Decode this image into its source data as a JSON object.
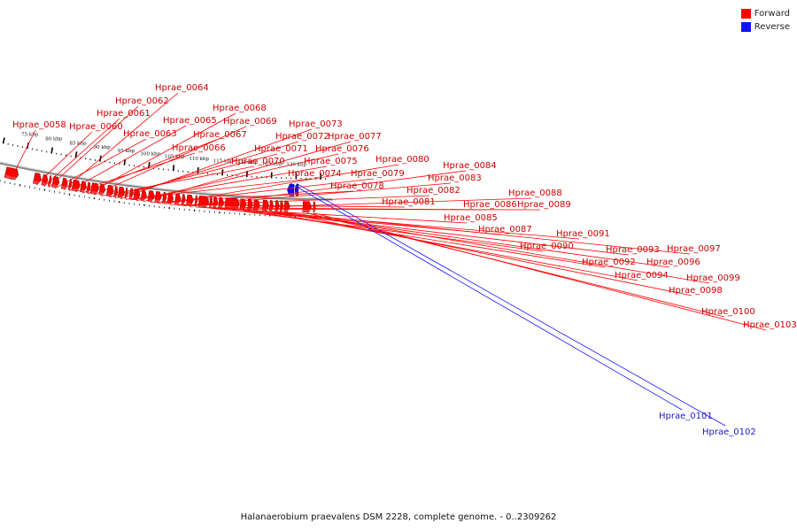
{
  "legend": {
    "forward": {
      "label": "Forward",
      "color": "#ff0000"
    },
    "reverse": {
      "label": "Reverse",
      "color": "#1010ff"
    }
  },
  "caption": "Halanaerobium praevalens DSM 2228, complete genome. - 0..2309262",
  "scale": {
    "unit": "kbp",
    "major_ticks": [
      {
        "kbp": 75,
        "label": "75 kbp"
      },
      {
        "kbp": 80,
        "label": "80 kbp"
      },
      {
        "kbp": 85,
        "label": "85 kbp"
      },
      {
        "kbp": 90,
        "label": "90 kbp"
      },
      {
        "kbp": 95,
        "label": "95 kbp"
      },
      {
        "kbp": 100,
        "label": "100 kbp"
      },
      {
        "kbp": 105,
        "label": "105 kbp"
      },
      {
        "kbp": 110,
        "label": "110 kbp"
      },
      {
        "kbp": 115,
        "label": "115 kbp"
      },
      {
        "kbp": 120,
        "label": "120 kbp"
      },
      {
        "kbp": 125,
        "label": "125 kbp"
      },
      {
        "kbp": 130,
        "label": "130 kbp"
      }
    ]
  },
  "genes": [
    {
      "name": "Hprae_0058",
      "strand": "forward",
      "start_kbp": 71.7,
      "end_kbp": 74.3
    },
    {
      "name": "Hprae_0060",
      "strand": "forward",
      "start_kbp": 77.5,
      "end_kbp": 78.9
    },
    {
      "name": "Hprae_0061",
      "strand": "forward",
      "start_kbp": 79.2,
      "end_kbp": 80.3
    },
    {
      "name": "Hprae_0062",
      "strand": "forward",
      "start_kbp": 80.5,
      "end_kbp": 81.0
    },
    {
      "name": "Hprae_0063",
      "strand": "forward",
      "start_kbp": 81.3,
      "end_kbp": 82.6
    },
    {
      "name": "Hprae_0064",
      "strand": "forward",
      "start_kbp": 83.2,
      "end_kbp": 84.3
    },
    {
      "name": "Hprae_0065",
      "strand": "forward",
      "start_kbp": 84.6,
      "end_kbp": 85.1
    },
    {
      "name": "Hprae_0066",
      "strand": "forward",
      "start_kbp": 85.3,
      "end_kbp": 86.8
    },
    {
      "name": "Hprae_0067",
      "strand": "forward",
      "start_kbp": 87.0,
      "end_kbp": 88.1
    },
    {
      "name": "Hprae_0068",
      "strand": "forward",
      "start_kbp": 88.3,
      "end_kbp": 88.9
    },
    {
      "name": "Hprae_0069",
      "strand": "forward",
      "start_kbp": 89.1,
      "end_kbp": 90.6
    },
    {
      "name": "Hprae_0070",
      "strand": "forward",
      "start_kbp": 90.8,
      "end_kbp": 91.9
    },
    {
      "name": "Hprae_0071",
      "strand": "forward",
      "start_kbp": 92.3,
      "end_kbp": 93.6
    },
    {
      "name": "Hprae_0072",
      "strand": "forward",
      "start_kbp": 93.8,
      "end_kbp": 94.4
    },
    {
      "name": "Hprae_0073",
      "strand": "forward",
      "start_kbp": 94.6,
      "end_kbp": 95.8
    },
    {
      "name": "Hprae_0074",
      "strand": "forward",
      "start_kbp": 96.0,
      "end_kbp": 96.4
    },
    {
      "name": "Hprae_0075",
      "strand": "forward",
      "start_kbp": 96.9,
      "end_kbp": 97.5
    },
    {
      "name": "Hprae_0076",
      "strand": "forward",
      "start_kbp": 97.7,
      "end_kbp": 98.9
    },
    {
      "name": "Hprae_0077",
      "strand": "forward",
      "start_kbp": 99.2,
      "end_kbp": 100.2
    },
    {
      "name": "Hprae_0078",
      "strand": "forward",
      "start_kbp": 100.6,
      "end_kbp": 101.8
    },
    {
      "name": "Hprae_0079",
      "strand": "forward",
      "start_kbp": 102.0,
      "end_kbp": 103.2
    },
    {
      "name": "Hprae_0080",
      "strand": "forward",
      "start_kbp": 103.5,
      "end_kbp": 104.2
    },
    {
      "name": "Hprae_0081",
      "strand": "forward",
      "start_kbp": 104.5,
      "end_kbp": 105.6
    },
    {
      "name": "Hprae_0082",
      "strand": "forward",
      "start_kbp": 106.0,
      "end_kbp": 107.1
    },
    {
      "name": "Hprae_0083",
      "strand": "forward",
      "start_kbp": 107.3,
      "end_kbp": 108.0
    },
    {
      "name": "Hprae_0084",
      "strand": "forward",
      "start_kbp": 108.3,
      "end_kbp": 109.6
    },
    {
      "name": "Hprae_0085",
      "strand": "forward",
      "start_kbp": 110.0,
      "end_kbp": 110.4
    },
    {
      "name": "Hprae_0086",
      "strand": "forward",
      "start_kbp": 110.7,
      "end_kbp": 112.7
    },
    {
      "name": "Hprae_0087",
      "strand": "forward",
      "start_kbp": 112.9,
      "end_kbp": 113.4
    },
    {
      "name": "Hprae_0088",
      "strand": "forward",
      "start_kbp": 113.6,
      "end_kbp": 114.5
    },
    {
      "name": "Hprae_0089",
      "strand": "forward",
      "start_kbp": 114.7,
      "end_kbp": 115.7
    },
    {
      "name": "Hprae_0090",
      "strand": "forward",
      "start_kbp": 116.0,
      "end_kbp": 118.8
    },
    {
      "name": "Hprae_0091",
      "strand": "forward",
      "start_kbp": 119.0,
      "end_kbp": 120.2
    },
    {
      "name": "Hprae_0092",
      "strand": "forward",
      "start_kbp": 120.5,
      "end_kbp": 121.5
    },
    {
      "name": "Hprae_0093",
      "strand": "forward",
      "start_kbp": 121.7,
      "end_kbp": 122.9
    },
    {
      "name": "Hprae_0094",
      "strand": "forward",
      "start_kbp": 123.5,
      "end_kbp": 124.7
    },
    {
      "name": "Hprae_0096",
      "strand": "forward",
      "start_kbp": 124.9,
      "end_kbp": 125.6
    },
    {
      "name": "Hprae_0097",
      "strand": "forward",
      "start_kbp": 126.0,
      "end_kbp": 126.8
    },
    {
      "name": "Hprae_0098",
      "strand": "forward",
      "start_kbp": 127.0,
      "end_kbp": 127.6
    },
    {
      "name": "Hprae_0099",
      "strand": "forward",
      "start_kbp": 127.8,
      "end_kbp": 128.9
    },
    {
      "name": "Hprae_0100",
      "strand": "forward",
      "start_kbp": 131.5,
      "end_kbp": 133.2
    },
    {
      "name": "Hprae_0101",
      "strand": "reverse",
      "start_kbp": 128.3,
      "end_kbp": 129.6
    },
    {
      "name": "Hprae_0102",
      "strand": "reverse",
      "start_kbp": 129.8,
      "end_kbp": 130.5
    },
    {
      "name": "Hprae_0103",
      "strand": "forward",
      "start_kbp": 133.6,
      "end_kbp": 134.0
    }
  ]
}
